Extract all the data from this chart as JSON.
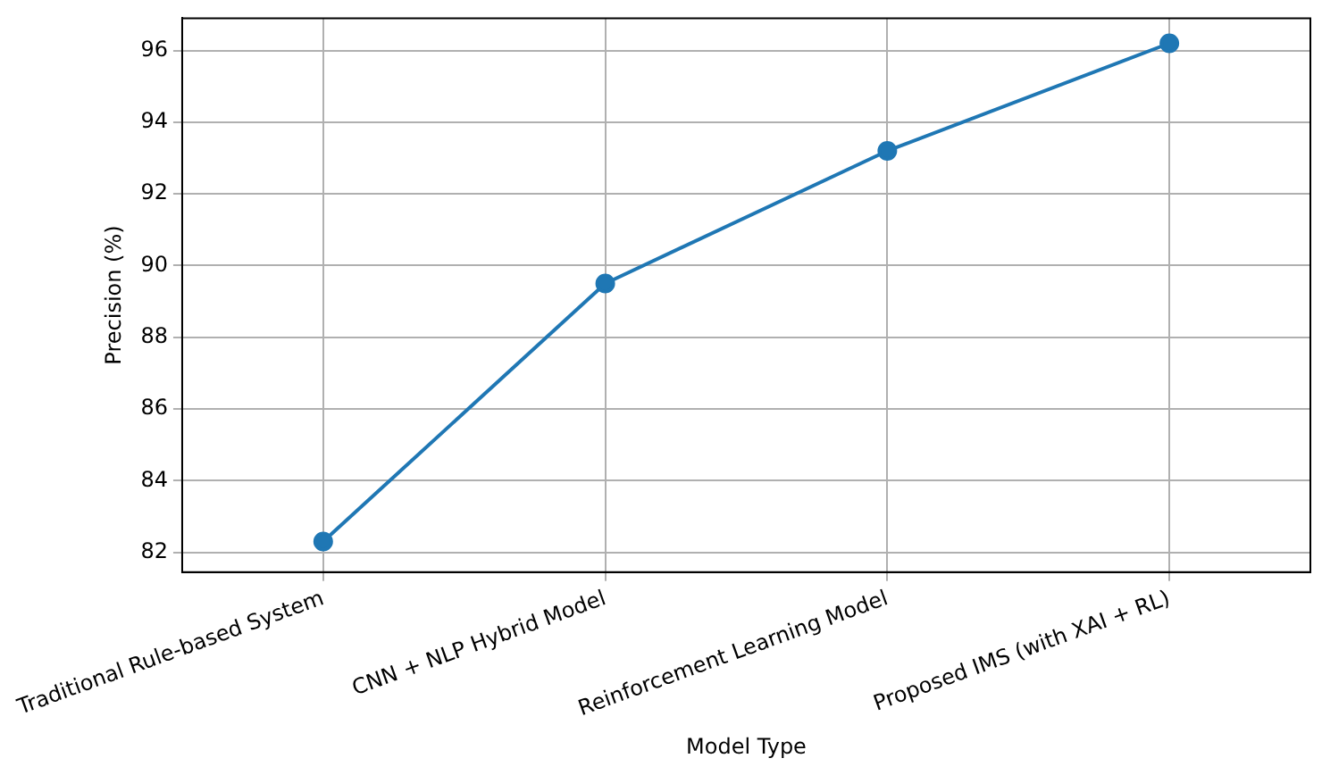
{
  "chart_data": {
    "type": "line",
    "xlabel": "Model Type",
    "ylabel": "Precision (%)",
    "categories": [
      "Traditional Rule-based System",
      "CNN + NLP Hybrid Model",
      "Reinforcement Learning Model",
      "Proposed IMS (with XAI + RL)"
    ],
    "series": [
      {
        "color": "#1f77b4",
        "values": [
          82.3,
          89.5,
          93.2,
          96.2
        ]
      }
    ],
    "ylim": [
      81.45,
      96.9
    ],
    "yticks": [
      82,
      84,
      86,
      88,
      90,
      92,
      94,
      96
    ],
    "grid": true,
    "marker": "circle",
    "line_style": "solid"
  }
}
